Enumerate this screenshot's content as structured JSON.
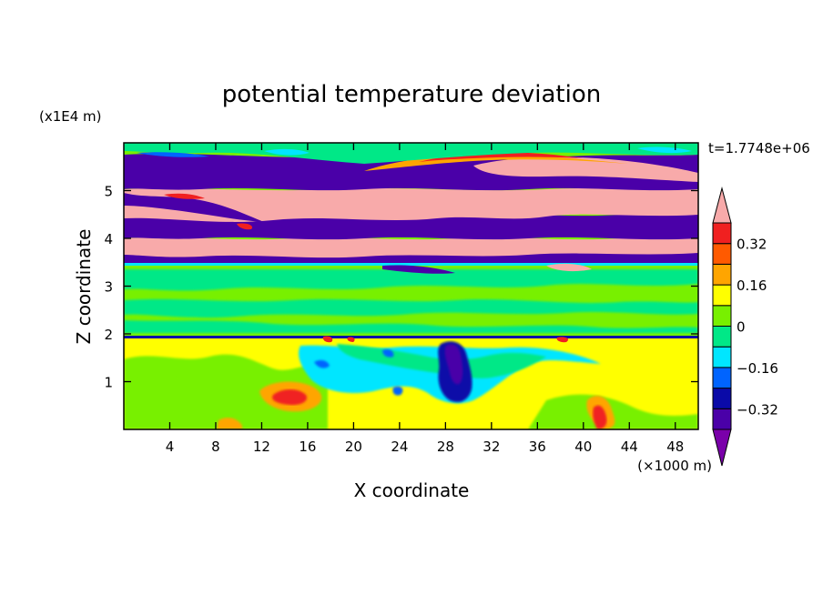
{
  "chart_data": {
    "type": "heatmap",
    "title": "potential temperature deviation",
    "xlabel": "X coordinate",
    "ylabel": "Z coordinate",
    "x_unit": "(×1000 m)",
    "y_unit": "(x1E4 m)",
    "time_label": "t=1.7748e+06",
    "xlim": [
      0,
      50
    ],
    "ylim": [
      0,
      6
    ],
    "x_ticks": [
      4,
      8,
      12,
      16,
      20,
      24,
      28,
      32,
      36,
      40,
      44,
      48
    ],
    "y_ticks": [
      1,
      2,
      3,
      4,
      5
    ],
    "colorbar": {
      "labels": [
        "0.32",
        "0.16",
        "0",
        "−0.16",
        "−0.32"
      ],
      "label_values": [
        0.32,
        0.16,
        0,
        -0.16,
        -0.32
      ],
      "levels": [
        -0.4,
        -0.32,
        -0.24,
        -0.16,
        -0.08,
        0,
        0.08,
        0.16,
        0.24,
        0.32,
        0.4
      ],
      "colors": [
        "#7a00aa",
        "#4a00a8",
        "#0a0aa8",
        "#0064ff",
        "#00e6ff",
        "#00e887",
        "#78f000",
        "#ffff00",
        "#ffa500",
        "#ff5a00",
        "#f02020",
        "#f8aaaa"
      ]
    },
    "regions": [
      {
        "z": [
          5.73,
          5.95
        ],
        "x": [
          0,
          50
        ],
        "value": 0.02,
        "note": "top edge band"
      },
      {
        "z": [
          5.05,
          5.72
        ],
        "x": [
          0,
          50
        ],
        "value": -0.45,
        "note": "upper purple layer"
      },
      {
        "z": [
          5.25,
          5.88
        ],
        "x": [
          22,
          50
        ],
        "value": 0.45,
        "note": "upper pink lens"
      },
      {
        "z": [
          4.2,
          5.05
        ],
        "x": [
          0,
          50
        ],
        "value": 0.45,
        "note": "pink layer"
      },
      {
        "z": [
          4.05,
          4.6
        ],
        "x": [
          0,
          50
        ],
        "value": -0.45
      },
      {
        "z": [
          3.55,
          4.05
        ],
        "x": [
          0,
          50
        ],
        "value": 0.45
      },
      {
        "z": [
          3.3,
          3.8
        ],
        "x": [
          0,
          50
        ],
        "value": -0.45
      },
      {
        "z": [
          1.9,
          3.3
        ],
        "x": [
          0,
          50
        ],
        "value": 0.05,
        "note": "green stratified layer"
      },
      {
        "z": [
          0,
          1.9
        ],
        "x": [
          0,
          50
        ],
        "value": 0.12,
        "note": "lower yellow-green layer"
      },
      {
        "z": [
          0.5,
          1.9
        ],
        "x": [
          27.5,
          30
        ],
        "value": -0.36,
        "note": "dark blue plume"
      },
      {
        "z": [
          0.5,
          0.8
        ],
        "x": [
          13,
          16
        ],
        "value": 0.36,
        "note": "red eddy"
      }
    ]
  }
}
